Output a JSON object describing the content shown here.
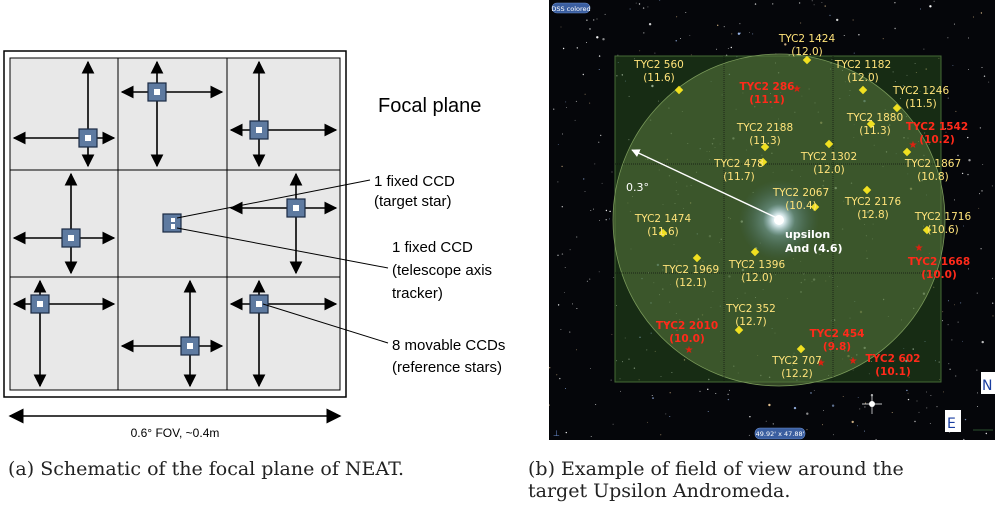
{
  "left_figure": {
    "title": "Focal plane",
    "labels": {
      "target_ccd": [
        "1 fixed CCD",
        "(target star)"
      ],
      "axis_ccd": [
        "1 fixed CCD",
        "(telescope axis",
        "tracker)"
      ],
      "movable_ccds": [
        "8 movable CCDs",
        "(reference stars)"
      ]
    },
    "scale_label": "0.6° FOV, ~0.4m"
  },
  "right_figure": {
    "top_tag": "DSS colored",
    "bottom_readout": "49.92' x 47.88'",
    "radius_label": "0.3°",
    "target": {
      "name": "upsilon",
      "detail": "And (4.6)"
    },
    "compass": {
      "north": "N",
      "east": "E"
    },
    "stars": [
      {
        "id": "TYC2 1424",
        "mag": "(12.0)",
        "ref": false
      },
      {
        "id": "TYC2 560",
        "mag": "(11.6)",
        "ref": false
      },
      {
        "id": "TYC2 286",
        "mag": "(11.1)",
        "ref": true
      },
      {
        "id": "TYC2 1182",
        "mag": "(12.0)",
        "ref": false
      },
      {
        "id": "TYC2 1246",
        "mag": "(11.5)",
        "ref": false
      },
      {
        "id": "TYC2 1880",
        "mag": "(11.3)",
        "ref": false
      },
      {
        "id": "TYC2 1542",
        "mag": "(10.2)",
        "ref": true
      },
      {
        "id": "TYC2 2188",
        "mag": "(11.3)",
        "ref": false
      },
      {
        "id": "TYC2 478",
        "mag": "(11.7)",
        "ref": false
      },
      {
        "id": "TYC2 1302",
        "mag": "(12.0)",
        "ref": false
      },
      {
        "id": "TYC2 1867",
        "mag": "(10.8)",
        "ref": false
      },
      {
        "id": "TYC2 2067",
        "mag": "(10.4)",
        "ref": false
      },
      {
        "id": "TYC2 2176",
        "mag": "(12.8)",
        "ref": false
      },
      {
        "id": "TYC2 1716",
        "mag": "(10.6)",
        "ref": false
      },
      {
        "id": "TYC2 1474",
        "mag": "(11.6)",
        "ref": false
      },
      {
        "id": "TYC2 1668",
        "mag": "(10.0)",
        "ref": true
      },
      {
        "id": "TYC2 1969",
        "mag": "(12.1)",
        "ref": false
      },
      {
        "id": "TYC2 1396",
        "mag": "(12.0)",
        "ref": false
      },
      {
        "id": "TYC2 352",
        "mag": "(12.7)",
        "ref": false
      },
      {
        "id": "TYC2 2010",
        "mag": "(10.0)",
        "ref": true
      },
      {
        "id": "TYC2 454",
        "mag": "(9.8)",
        "ref": true
      },
      {
        "id": "TYC2 707",
        "mag": "(12.2)",
        "ref": false
      },
      {
        "id": "TYC2 602",
        "mag": "(10.1)",
        "ref": true
      }
    ]
  },
  "captions": {
    "a": "(a) Schematic of the focal plane of NEAT.",
    "b": [
      "(b) Example of field of view around the",
      "target Upsilon Andromeda."
    ]
  },
  "colors": {
    "ccd_fill": "#5e7aa0",
    "cell_fill": "#e8e8e8",
    "star_yellow": "#f0e020",
    "star_red": "#e02010",
    "label_yellow": "#ffe37a",
    "label_red": "#ff2a1a"
  }
}
